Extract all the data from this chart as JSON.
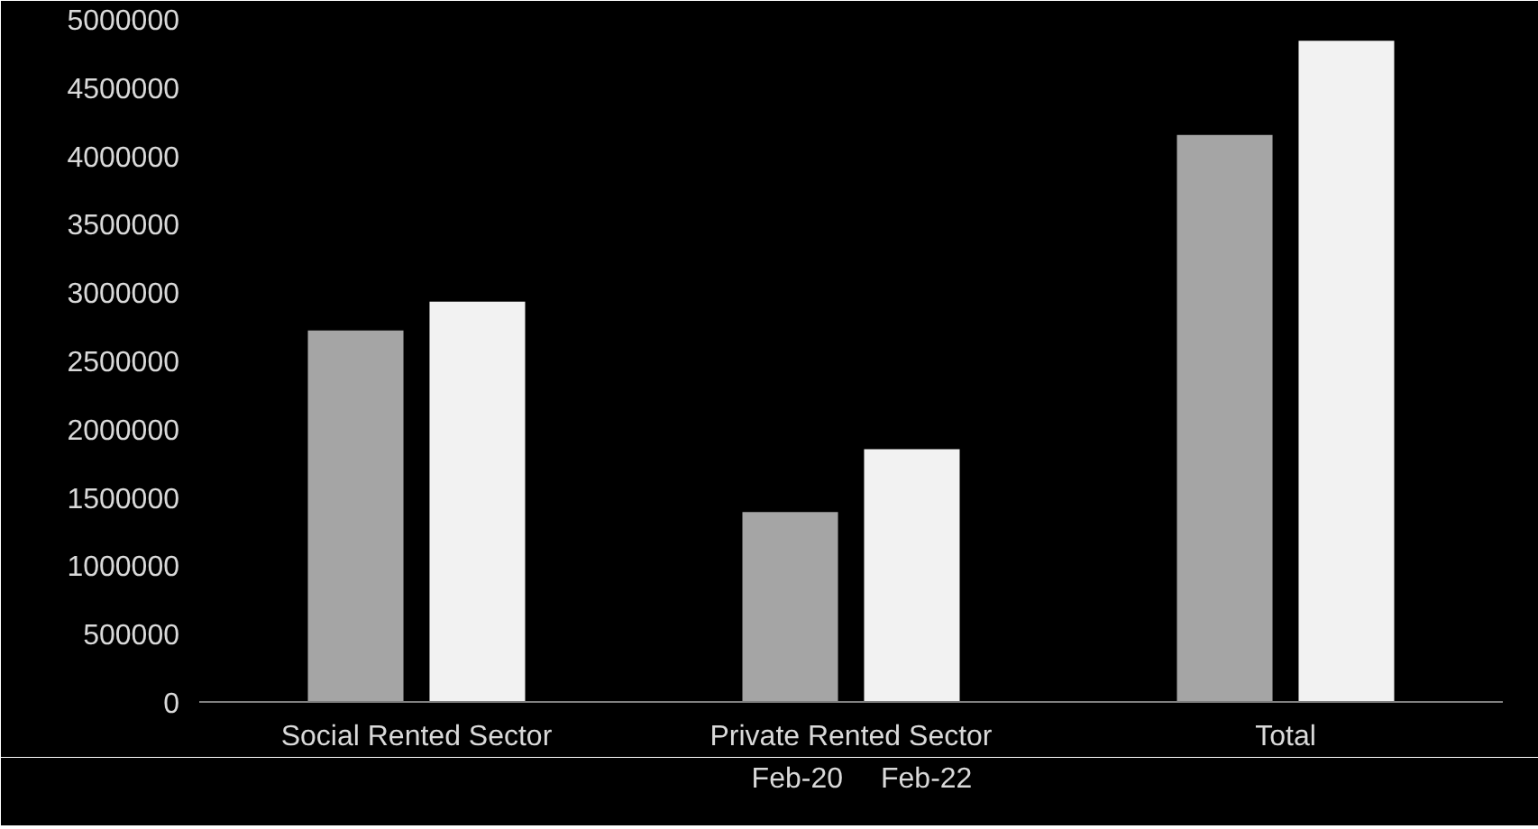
{
  "chart_data": {
    "type": "bar",
    "categories": [
      "Social Rented Sector",
      "Private Rented Sector",
      "Total"
    ],
    "series": [
      {
        "name": "Feb-20",
        "color": "#a5a5a5",
        "values": [
          2720000,
          1390000,
          4150000
        ]
      },
      {
        "name": "Feb-22",
        "color": "#f2f2f2",
        "values": [
          2930000,
          1850000,
          4840000
        ]
      }
    ],
    "ylim": [
      0,
      5000000
    ],
    "yticks": [
      0,
      500000,
      1000000,
      1500000,
      2000000,
      2500000,
      3000000,
      3500000,
      4000000,
      4500000,
      5000000
    ],
    "grid": false,
    "legend": "bottom"
  }
}
